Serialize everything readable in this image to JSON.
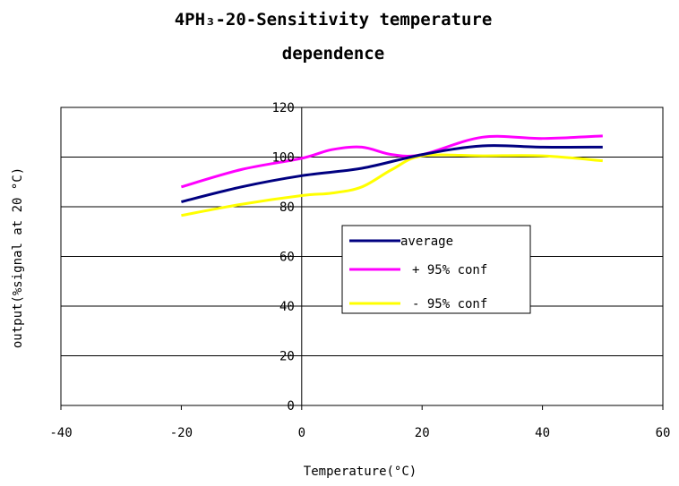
{
  "chart_data": {
    "type": "line",
    "title_line1": "4PH₃-20-Sensitivity temperature",
    "title_line2": "dependence",
    "xlabel": "Temperature(°C)",
    "ylabel": "output(%signal at 20 °C)",
    "xlim": [
      -40,
      60
    ],
    "ylim": [
      0,
      120
    ],
    "x_ticks": [
      -40,
      -20,
      0,
      20,
      40,
      60
    ],
    "y_ticks": [
      0,
      20,
      40,
      60,
      80,
      100,
      120
    ],
    "grid": "horizontal",
    "legend_position": "center-right",
    "series": [
      {
        "name": "average",
        "color": "#000080",
        "x": [
          -20,
          -10,
          0,
          10,
          20,
          30,
          40,
          50
        ],
        "y": [
          82,
          88,
          92.5,
          95.5,
          101,
          104.5,
          104,
          104
        ]
      },
      {
        "name": "+ 95% conf",
        "color": "#ff00ff",
        "x": [
          -20,
          -10,
          0,
          5,
          10,
          15,
          20,
          30,
          40,
          50
        ],
        "y": [
          88,
          95,
          99.5,
          103,
          104,
          101,
          101,
          108,
          107.5,
          108.5
        ]
      },
      {
        "name": "- 95% conf",
        "color": "#ffff00",
        "x": [
          -20,
          -10,
          0,
          5,
          10,
          15,
          20,
          30,
          40,
          50
        ],
        "y": [
          76.5,
          81,
          84.5,
          85.5,
          88,
          95,
          100.5,
          100.5,
          100.5,
          98.5
        ]
      }
    ]
  }
}
